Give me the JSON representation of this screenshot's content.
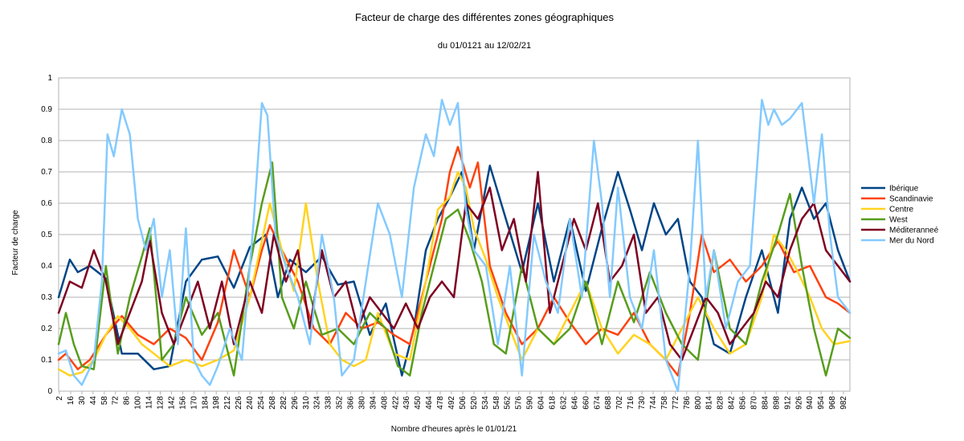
{
  "chart_data": {
    "type": "line",
    "title": "Facteur de charge des différentes zones géographiques",
    "subtitle": "du 01/0121 au 12/02/21",
    "xlabel": "Nombre d'heures après le 01/01/21",
    "ylabel": "Facteur de charge",
    "xlim": [
      1,
      990
    ],
    "ylim": [
      0,
      1
    ],
    "y_ticks": [
      "0",
      "0.1",
      "0.2",
      "0.3",
      "0.4",
      "0.5",
      "0.6",
      "0.7",
      "0.8",
      "0.9",
      "1"
    ],
    "x_ticks": [
      2,
      16,
      30,
      44,
      58,
      72,
      86,
      100,
      114,
      128,
      142,
      156,
      170,
      184,
      198,
      212,
      226,
      240,
      254,
      268,
      282,
      296,
      310,
      324,
      338,
      352,
      366,
      380,
      394,
      408,
      422,
      436,
      450,
      464,
      478,
      492,
      506,
      520,
      534,
      548,
      562,
      576,
      590,
      604,
      618,
      632,
      646,
      660,
      674,
      688,
      702,
      716,
      730,
      744,
      758,
      772,
      786,
      800,
      814,
      828,
      842,
      856,
      870,
      884,
      898,
      912,
      926,
      940,
      954,
      968,
      982
    ],
    "grid": true,
    "legend_position": "right",
    "series": [
      {
        "name": "Ibérique",
        "color": "#004586",
        "x": [
          1,
          15,
          25,
          40,
          60,
          80,
          100,
          120,
          140,
          160,
          180,
          200,
          220,
          240,
          260,
          275,
          290,
          310,
          330,
          350,
          370,
          390,
          410,
          430,
          445,
          460,
          475,
          490,
          505,
          520,
          540,
          560,
          580,
          600,
          620,
          640,
          660,
          680,
          700,
          715,
          730,
          745,
          760,
          775,
          790,
          805,
          820,
          840,
          860,
          880,
          900,
          915,
          930,
          945,
          960,
          975,
          990
        ],
        "values": [
          0.3,
          0.42,
          0.38,
          0.4,
          0.36,
          0.12,
          0.12,
          0.07,
          0.08,
          0.35,
          0.42,
          0.43,
          0.33,
          0.46,
          0.5,
          0.3,
          0.42,
          0.38,
          0.43,
          0.34,
          0.35,
          0.18,
          0.28,
          0.05,
          0.2,
          0.45,
          0.55,
          0.62,
          0.7,
          0.45,
          0.72,
          0.55,
          0.38,
          0.6,
          0.35,
          0.55,
          0.32,
          0.52,
          0.7,
          0.58,
          0.45,
          0.6,
          0.5,
          0.55,
          0.35,
          0.3,
          0.15,
          0.12,
          0.3,
          0.45,
          0.25,
          0.55,
          0.65,
          0.55,
          0.6,
          0.45,
          0.35
        ]
      },
      {
        "name": "Scandinavie",
        "color": "#ff420e",
        "x": [
          1,
          10,
          25,
          40,
          60,
          80,
          100,
          120,
          140,
          160,
          180,
          200,
          220,
          240,
          255,
          265,
          280,
          300,
          320,
          340,
          360,
          380,
          400,
          420,
          440,
          460,
          480,
          490,
          500,
          515,
          525,
          540,
          560,
          580,
          600,
          620,
          640,
          660,
          680,
          700,
          720,
          740,
          760,
          775,
          790,
          805,
          820,
          840,
          860,
          880,
          900,
          920,
          940,
          960,
          975,
          990
        ],
        "values": [
          0.1,
          0.12,
          0.07,
          0.1,
          0.18,
          0.24,
          0.18,
          0.15,
          0.2,
          0.17,
          0.1,
          0.22,
          0.45,
          0.3,
          0.45,
          0.53,
          0.45,
          0.35,
          0.2,
          0.15,
          0.25,
          0.2,
          0.22,
          0.18,
          0.15,
          0.35,
          0.55,
          0.7,
          0.78,
          0.65,
          0.73,
          0.4,
          0.25,
          0.15,
          0.2,
          0.3,
          0.22,
          0.15,
          0.2,
          0.18,
          0.25,
          0.15,
          0.1,
          0.05,
          0.25,
          0.5,
          0.38,
          0.42,
          0.35,
          0.4,
          0.48,
          0.38,
          0.4,
          0.3,
          0.28,
          0.25
        ]
      },
      {
        "name": "Centre",
        "color": "#ffd320",
        "x": [
          1,
          15,
          30,
          45,
          60,
          75,
          90,
          105,
          120,
          140,
          160,
          180,
          200,
          220,
          240,
          255,
          265,
          280,
          295,
          310,
          325,
          340,
          355,
          370,
          385,
          400,
          420,
          440,
          460,
          475,
          490,
          500,
          510,
          520,
          535,
          550,
          565,
          580,
          600,
          620,
          640,
          660,
          680,
          700,
          720,
          740,
          760,
          780,
          800,
          820,
          840,
          860,
          880,
          895,
          910,
          925,
          940,
          955,
          970,
          990
        ],
        "values": [
          0.07,
          0.05,
          0.06,
          0.1,
          0.18,
          0.24,
          0.2,
          0.15,
          0.12,
          0.08,
          0.1,
          0.08,
          0.1,
          0.13,
          0.3,
          0.48,
          0.6,
          0.45,
          0.32,
          0.6,
          0.35,
          0.15,
          0.1,
          0.08,
          0.1,
          0.25,
          0.12,
          0.1,
          0.35,
          0.58,
          0.62,
          0.7,
          0.65,
          0.52,
          0.42,
          0.3,
          0.2,
          0.1,
          0.2,
          0.15,
          0.25,
          0.35,
          0.2,
          0.12,
          0.18,
          0.15,
          0.1,
          0.2,
          0.3,
          0.2,
          0.12,
          0.15,
          0.3,
          0.5,
          0.45,
          0.38,
          0.3,
          0.2,
          0.15,
          0.16
        ]
      },
      {
        "name": "West",
        "color": "#579d1c",
        "x": [
          1,
          10,
          20,
          30,
          45,
          60,
          75,
          90,
          105,
          115,
          130,
          145,
          160,
          180,
          200,
          220,
          240,
          255,
          268,
          280,
          295,
          310,
          330,
          350,
          370,
          390,
          410,
          425,
          440,
          455,
          470,
          485,
          500,
          515,
          530,
          545,
          560,
          580,
          600,
          620,
          640,
          660,
          680,
          700,
          720,
          740,
          760,
          780,
          800,
          820,
          840,
          860,
          880,
          900,
          915,
          930,
          945,
          960,
          975,
          990
        ],
        "values": [
          0.15,
          0.25,
          0.15,
          0.08,
          0.07,
          0.4,
          0.12,
          0.3,
          0.43,
          0.52,
          0.1,
          0.15,
          0.3,
          0.18,
          0.25,
          0.05,
          0.4,
          0.6,
          0.73,
          0.3,
          0.2,
          0.35,
          0.18,
          0.2,
          0.15,
          0.25,
          0.2,
          0.08,
          0.05,
          0.25,
          0.4,
          0.55,
          0.58,
          0.48,
          0.35,
          0.15,
          0.12,
          0.4,
          0.2,
          0.15,
          0.2,
          0.35,
          0.15,
          0.35,
          0.22,
          0.38,
          0.25,
          0.15,
          0.1,
          0.45,
          0.2,
          0.15,
          0.35,
          0.5,
          0.63,
          0.4,
          0.2,
          0.05,
          0.2,
          0.17
        ]
      },
      {
        "name": "Méditeranneé",
        "color": "#7e0021",
        "x": [
          1,
          15,
          30,
          45,
          60,
          75,
          90,
          105,
          115,
          130,
          145,
          160,
          175,
          190,
          205,
          220,
          240,
          255,
          270,
          285,
          300,
          315,
          330,
          345,
          360,
          375,
          390,
          405,
          420,
          435,
          450,
          465,
          480,
          495,
          510,
          525,
          540,
          555,
          570,
          585,
          600,
          615,
          630,
          645,
          660,
          675,
          690,
          705,
          720,
          735,
          750,
          765,
          780,
          795,
          810,
          825,
          840,
          855,
          870,
          885,
          900,
          915,
          930,
          945,
          960,
          975,
          990
        ],
        "values": [
          0.25,
          0.35,
          0.33,
          0.45,
          0.35,
          0.15,
          0.25,
          0.35,
          0.48,
          0.25,
          0.15,
          0.25,
          0.35,
          0.2,
          0.35,
          0.15,
          0.35,
          0.25,
          0.5,
          0.35,
          0.45,
          0.2,
          0.45,
          0.3,
          0.35,
          0.2,
          0.3,
          0.25,
          0.2,
          0.28,
          0.2,
          0.3,
          0.35,
          0.3,
          0.6,
          0.55,
          0.65,
          0.45,
          0.55,
          0.35,
          0.7,
          0.25,
          0.4,
          0.55,
          0.45,
          0.6,
          0.35,
          0.4,
          0.5,
          0.25,
          0.3,
          0.15,
          0.1,
          0.2,
          0.3,
          0.25,
          0.15,
          0.2,
          0.25,
          0.35,
          0.3,
          0.45,
          0.55,
          0.6,
          0.45,
          0.4,
          0.35
        ]
      },
      {
        "name": "Mer du Nord",
        "color": "#83caff",
        "x": [
          1,
          10,
          20,
          30,
          45,
          55,
          62,
          70,
          80,
          90,
          100,
          110,
          120,
          130,
          140,
          150,
          160,
          170,
          180,
          190,
          200,
          215,
          230,
          245,
          255,
          262,
          272,
          285,
          300,
          315,
          330,
          345,
          355,
          370,
          385,
          400,
          415,
          430,
          445,
          460,
          470,
          480,
          490,
          500,
          510,
          520,
          535,
          550,
          565,
          580,
          595,
          610,
          625,
          640,
          655,
          670,
          680,
          690,
          700,
          715,
          730,
          745,
          760,
          775,
          790,
          800,
          810,
          820,
          835,
          850,
          865,
          880,
          888,
          895,
          905,
          915,
          930,
          945,
          955,
          965,
          975,
          990
        ],
        "values": [
          0.12,
          0.13,
          0.05,
          0.02,
          0.1,
          0.35,
          0.82,
          0.75,
          0.9,
          0.82,
          0.55,
          0.45,
          0.55,
          0.3,
          0.45,
          0.15,
          0.52,
          0.1,
          0.05,
          0.02,
          0.08,
          0.2,
          0.1,
          0.55,
          0.92,
          0.88,
          0.5,
          0.4,
          0.3,
          0.15,
          0.5,
          0.3,
          0.05,
          0.1,
          0.35,
          0.6,
          0.5,
          0.3,
          0.65,
          0.82,
          0.75,
          0.93,
          0.85,
          0.92,
          0.58,
          0.45,
          0.4,
          0.15,
          0.4,
          0.05,
          0.5,
          0.35,
          0.25,
          0.55,
          0.3,
          0.8,
          0.6,
          0.3,
          0.65,
          0.3,
          0.2,
          0.45,
          0.1,
          0.0,
          0.4,
          0.8,
          0.3,
          0.45,
          0.2,
          0.35,
          0.4,
          0.93,
          0.85,
          0.9,
          0.85,
          0.87,
          0.92,
          0.6,
          0.82,
          0.5,
          0.3,
          0.25
        ]
      }
    ]
  }
}
